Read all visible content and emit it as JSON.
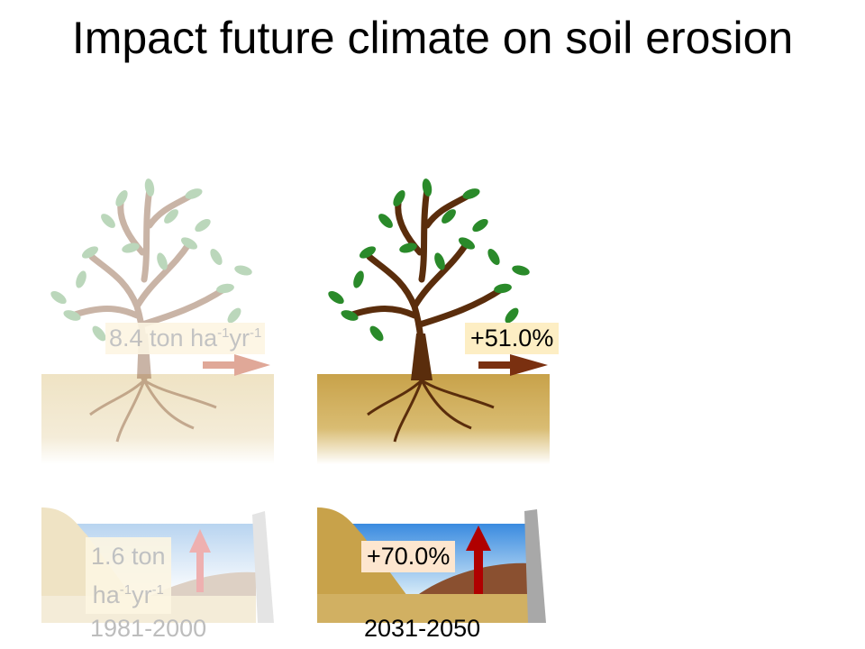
{
  "title": "Impact future climate on soil erosion",
  "panels": {
    "baseline": {
      "period": "1981-2000",
      "soil_erosion": {
        "value": "8.4 ton ha",
        "exp1": "-1",
        "unit2": "yr",
        "exp2": "-1"
      },
      "reservoir": {
        "line1": "1.6 ton",
        "value2": "ha",
        "exp1": "-1",
        "unit2": "yr",
        "exp2": "-1"
      }
    },
    "future": {
      "period": "2031-2050",
      "soil_erosion_change": "+51.0%",
      "reservoir_change": "+70.0%"
    }
  },
  "colors": {
    "leaf": "#2a8a2a",
    "trunk": "#5a2d0c",
    "soil": "#c8a24a",
    "water": "#3a8be0",
    "arrow_soil": "#7a3010",
    "arrow_reservoir": "#b00000"
  }
}
